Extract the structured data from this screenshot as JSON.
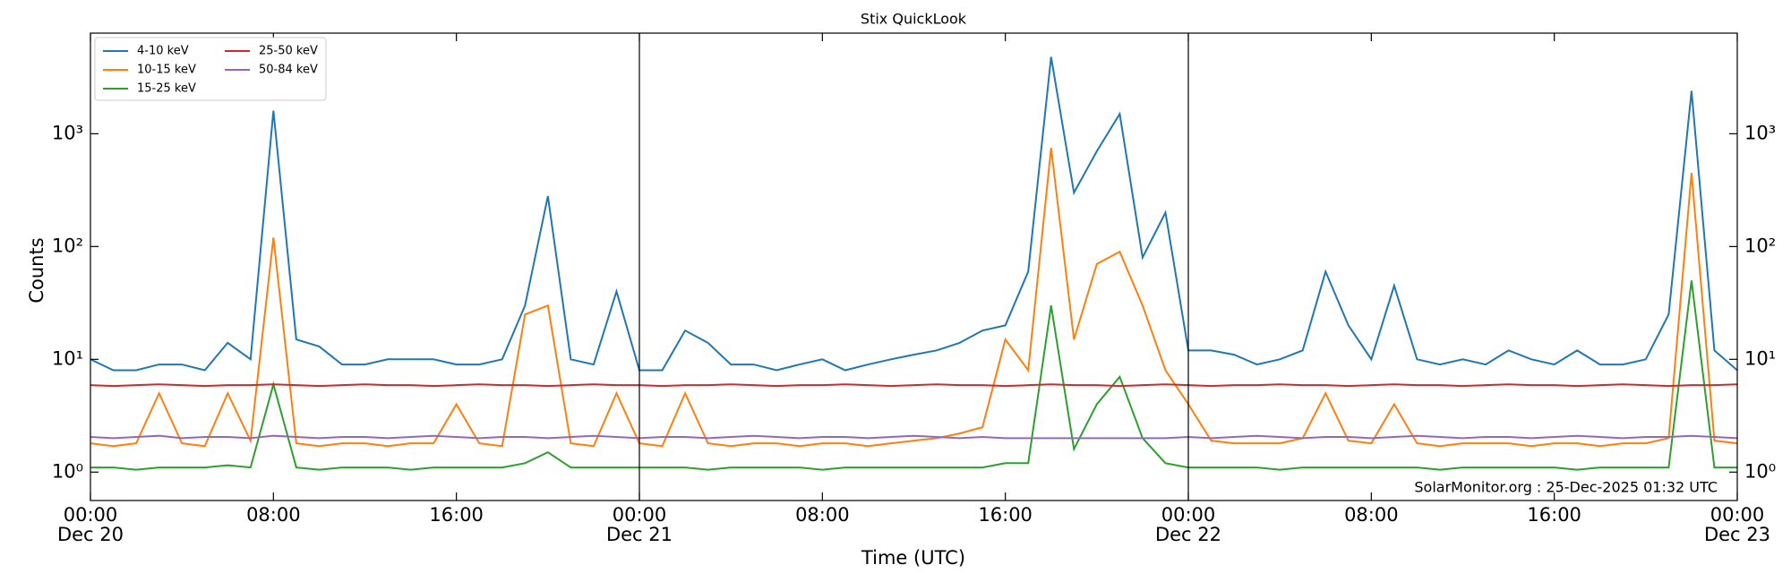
{
  "chart_data": {
    "type": "line",
    "title": "Stix QuickLook",
    "xlabel": "Time (UTC)",
    "ylabel": "Counts",
    "annotation": "SolarMonitor.org : 25-Dec-2025 01:32 UTC",
    "log_y": true,
    "mirror_y_labels": true,
    "day_lines": true,
    "legend": "upper left",
    "xlim": [
      "Dec 20 00:00",
      "Dec 23 00:00"
    ],
    "xticks": [
      {
        "value": "Dec 20 00:00",
        "label": "00:00",
        "date": "Dec 20"
      },
      {
        "value": "Dec 20 08:00",
        "label": "08:00"
      },
      {
        "value": "Dec 20 16:00",
        "label": "16:00"
      },
      {
        "value": "Dec 21 00:00",
        "label": "00:00",
        "date": "Dec 21"
      },
      {
        "value": "Dec 21 08:00",
        "label": "08:00"
      },
      {
        "value": "Dec 21 16:00",
        "label": "16:00"
      },
      {
        "value": "Dec 22 00:00",
        "label": "00:00",
        "date": "Dec 22"
      },
      {
        "value": "Dec 22 08:00",
        "label": "08:00"
      },
      {
        "value": "Dec 22 16:00",
        "label": "16:00"
      },
      {
        "value": "Dec 23 00:00",
        "label": "00:00",
        "date": "Dec 23"
      }
    ],
    "ylim": [
      0.56,
      7800
    ],
    "yticks": [
      {
        "value": 1,
        "label": "10⁰"
      },
      {
        "value": 10,
        "label": "10¹"
      },
      {
        "value": 100,
        "label": "10²"
      },
      {
        "value": 1000,
        "label": "10³"
      }
    ],
    "x": [
      "Dec 20 00:00",
      "Dec 20 01:00",
      "Dec 20 02:00",
      "Dec 20 03:00",
      "Dec 20 04:00",
      "Dec 20 05:00",
      "Dec 20 06:00",
      "Dec 20 07:00",
      "Dec 20 08:00",
      "Dec 20 09:00",
      "Dec 20 10:00",
      "Dec 20 11:00",
      "Dec 20 12:00",
      "Dec 20 13:00",
      "Dec 20 14:00",
      "Dec 20 15:00",
      "Dec 20 16:00",
      "Dec 20 17:00",
      "Dec 20 18:00",
      "Dec 20 19:00",
      "Dec 20 20:00",
      "Dec 20 21:00",
      "Dec 20 22:00",
      "Dec 20 23:00",
      "Dec 21 00:00",
      "Dec 21 01:00",
      "Dec 21 02:00",
      "Dec 21 03:00",
      "Dec 21 04:00",
      "Dec 21 05:00",
      "Dec 21 06:00",
      "Dec 21 07:00",
      "Dec 21 08:00",
      "Dec 21 09:00",
      "Dec 21 10:00",
      "Dec 21 11:00",
      "Dec 21 12:00",
      "Dec 21 13:00",
      "Dec 21 14:00",
      "Dec 21 15:00",
      "Dec 21 16:00",
      "Dec 21 17:00",
      "Dec 21 18:00",
      "Dec 21 19:00",
      "Dec 21 20:00",
      "Dec 21 21:00",
      "Dec 21 22:00",
      "Dec 21 23:00",
      "Dec 22 00:00",
      "Dec 22 01:00",
      "Dec 22 02:00",
      "Dec 22 03:00",
      "Dec 22 04:00",
      "Dec 22 05:00",
      "Dec 22 06:00",
      "Dec 22 07:00",
      "Dec 22 08:00",
      "Dec 22 09:00",
      "Dec 22 10:00",
      "Dec 22 11:00",
      "Dec 22 12:00",
      "Dec 22 13:00",
      "Dec 22 14:00",
      "Dec 22 15:00",
      "Dec 22 16:00",
      "Dec 22 17:00",
      "Dec 22 18:00",
      "Dec 22 19:00",
      "Dec 22 20:00",
      "Dec 22 21:00",
      "Dec 22 22:00",
      "Dec 22 23:00",
      "Dec 23 00:00"
    ],
    "series": [
      {
        "name": "4-10 keV",
        "color": "#1f77b4",
        "values": [
          10,
          8,
          8,
          9,
          9,
          8,
          14,
          10,
          1600,
          15,
          13,
          9,
          9,
          10,
          10,
          10,
          9,
          9,
          10,
          30,
          280,
          10,
          9,
          40,
          8,
          8,
          18,
          14,
          9,
          9,
          8,
          9,
          10,
          8,
          9,
          10,
          11,
          12,
          14,
          18,
          20,
          60,
          4800,
          300,
          700,
          1500,
          80,
          200,
          12,
          12,
          11,
          9,
          10,
          12,
          60,
          20,
          10,
          45,
          10,
          9,
          10,
          9,
          12,
          10,
          9,
          12,
          9,
          9,
          10,
          25,
          2400,
          12,
          8
        ]
      },
      {
        "name": "10-15 keV",
        "color": "#ff7f0e",
        "values": [
          1.8,
          1.7,
          1.8,
          5,
          1.8,
          1.7,
          5,
          1.9,
          120,
          1.8,
          1.7,
          1.8,
          1.8,
          1.7,
          1.8,
          1.8,
          4,
          1.8,
          1.7,
          25,
          30,
          1.8,
          1.7,
          5,
          1.8,
          1.7,
          5,
          1.8,
          1.7,
          1.8,
          1.8,
          1.7,
          1.8,
          1.8,
          1.7,
          1.8,
          1.9,
          2,
          2.2,
          2.5,
          15,
          8,
          750,
          15,
          70,
          90,
          30,
          8,
          4,
          1.9,
          1.8,
          1.8,
          1.8,
          2,
          5,
          1.9,
          1.8,
          4,
          1.8,
          1.7,
          1.8,
          1.8,
          1.8,
          1.7,
          1.8,
          1.8,
          1.7,
          1.8,
          1.8,
          2,
          450,
          1.9,
          1.8
        ]
      },
      {
        "name": "15-25 keV",
        "color": "#2ca02c",
        "values": [
          1.1,
          1.1,
          1.05,
          1.1,
          1.1,
          1.1,
          1.15,
          1.1,
          6,
          1.1,
          1.05,
          1.1,
          1.1,
          1.1,
          1.05,
          1.1,
          1.1,
          1.1,
          1.1,
          1.2,
          1.5,
          1.1,
          1.1,
          1.1,
          1.1,
          1.1,
          1.1,
          1.05,
          1.1,
          1.1,
          1.1,
          1.1,
          1.05,
          1.1,
          1.1,
          1.1,
          1.1,
          1.1,
          1.1,
          1.1,
          1.2,
          1.2,
          30,
          1.6,
          4,
          7,
          2,
          1.2,
          1.1,
          1.1,
          1.1,
          1.1,
          1.05,
          1.1,
          1.1,
          1.1,
          1.1,
          1.1,
          1.1,
          1.05,
          1.1,
          1.1,
          1.1,
          1.1,
          1.1,
          1.05,
          1.1,
          1.1,
          1.1,
          1.1,
          50,
          1.1,
          1.1
        ]
      },
      {
        "name": "25-50 keV",
        "color": "#d62728",
        "values": [
          5.9,
          5.8,
          5.9,
          6,
          5.9,
          5.8,
          5.9,
          5.9,
          6,
          5.9,
          5.8,
          5.9,
          6,
          5.9,
          5.9,
          5.8,
          5.9,
          6,
          5.9,
          5.9,
          5.8,
          5.9,
          6,
          5.9,
          5.9,
          5.8,
          5.9,
          5.9,
          6,
          5.9,
          5.8,
          5.9,
          5.9,
          6,
          5.9,
          5.8,
          5.9,
          6,
          5.9,
          5.9,
          5.8,
          5.9,
          6,
          5.9,
          5.9,
          5.8,
          5.9,
          6,
          5.9,
          5.8,
          5.9,
          5.9,
          6,
          5.9,
          5.9,
          5.8,
          5.9,
          6,
          5.9,
          5.9,
          5.8,
          5.9,
          6,
          5.9,
          5.9,
          5.8,
          5.9,
          6,
          5.9,
          5.8,
          5.9,
          5.9,
          6
        ]
      },
      {
        "name": "50-84 keV",
        "color": "#9467bd",
        "values": [
          2.05,
          2.0,
          2.05,
          2.1,
          2.0,
          2.05,
          2.05,
          2.0,
          2.1,
          2.05,
          2.0,
          2.05,
          2.05,
          2.0,
          2.05,
          2.1,
          2.05,
          2.0,
          2.05,
          2.05,
          2.0,
          2.05,
          2.1,
          2.05,
          2.0,
          2.05,
          2.05,
          2.0,
          2.05,
          2.1,
          2.05,
          2.0,
          2.05,
          2.05,
          2.0,
          2.05,
          2.1,
          2.05,
          2.0,
          2.05,
          2.0,
          2.0,
          2.0,
          2.0,
          2.0,
          2.0,
          2.0,
          2.0,
          2.05,
          2.0,
          2.05,
          2.1,
          2.05,
          2.0,
          2.05,
          2.05,
          2.0,
          2.05,
          2.1,
          2.05,
          2.0,
          2.05,
          2.05,
          2.0,
          2.05,
          2.1,
          2.05,
          2.0,
          2.05,
          2.05,
          2.1,
          2.05,
          2.0
        ]
      }
    ]
  }
}
